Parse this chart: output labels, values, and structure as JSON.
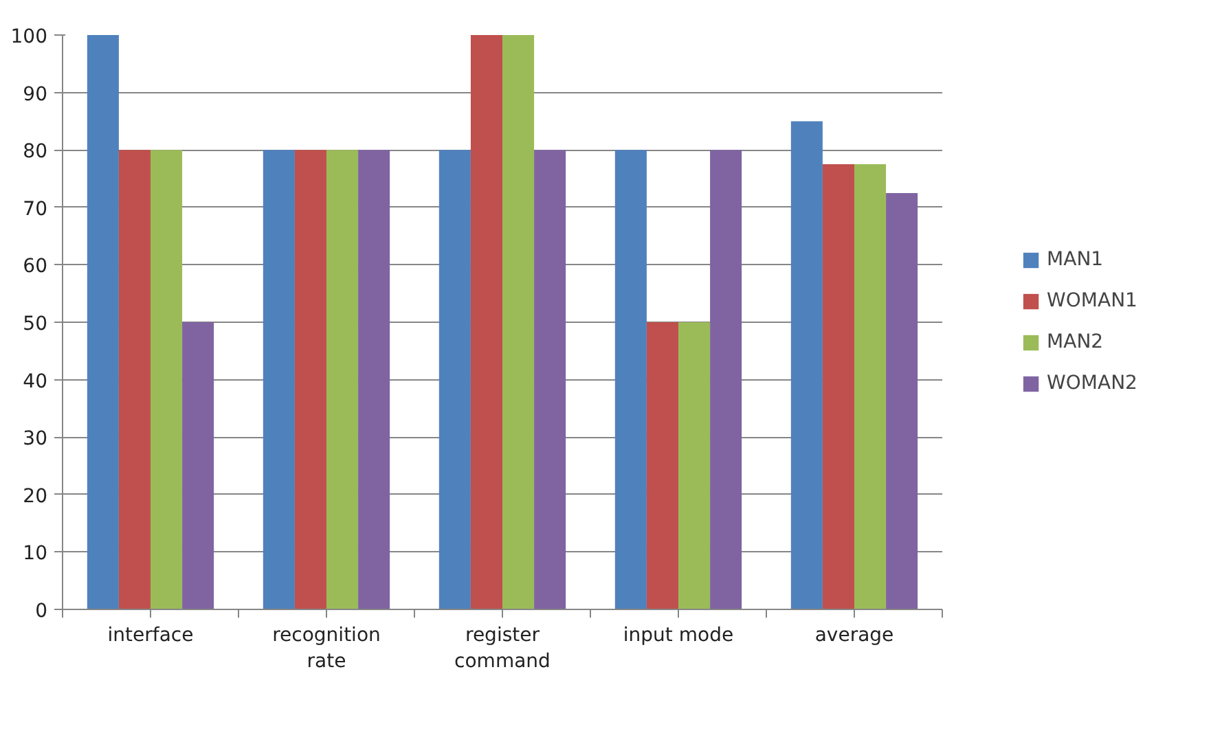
{
  "chart_data": {
    "type": "bar",
    "categories": [
      "interface",
      "recognition\nrate",
      "register\ncommand",
      "input mode",
      "average"
    ],
    "series": [
      {
        "name": "MAN1",
        "color": "#4f81bd",
        "values": [
          100,
          80,
          80,
          80,
          85
        ]
      },
      {
        "name": "WOMAN1",
        "color": "#c0504d",
        "values": [
          80,
          80,
          100,
          50,
          77.5
        ]
      },
      {
        "name": "MAN2",
        "color": "#9bbb59",
        "values": [
          80,
          80,
          100,
          50,
          77.5
        ]
      },
      {
        "name": "WOMAN2",
        "color": "#8064a2",
        "values": [
          50,
          80,
          80,
          80,
          72.5
        ]
      }
    ],
    "ylim": [
      0,
      100
    ],
    "yticks": [
      0,
      10,
      20,
      30,
      40,
      50,
      60,
      70,
      80,
      90,
      100
    ],
    "grid": "y",
    "legend": "right"
  }
}
